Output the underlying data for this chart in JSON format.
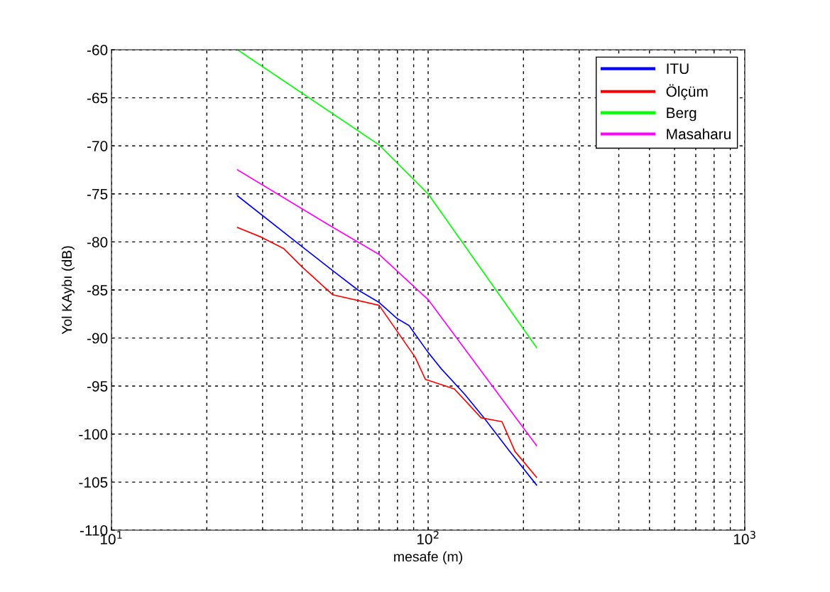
{
  "chart_data": {
    "type": "line",
    "xlabel": "mesafe (m)",
    "ylabel": "Yol KAybı (dB)",
    "log": "x",
    "xlim": [
      10,
      1000
    ],
    "xticks": [
      {
        "value": 10,
        "label": "10$^{1}$"
      },
      {
        "value": 100,
        "label": "10$^{2}$"
      },
      {
        "value": 1000,
        "label": "10$^{3}$"
      }
    ],
    "ylim": [
      -110,
      -60
    ],
    "yticks": [
      -110,
      -105,
      -100,
      -95,
      -90,
      -85,
      -80,
      -75,
      -70,
      -65,
      -60
    ],
    "grid": true,
    "legend": "top right",
    "line_style": "solid",
    "series": [
      {
        "name": "ITU",
        "color": "#0000ff",
        "x": [
          25,
          40,
          50,
          60,
          70,
          80,
          87,
          100,
          110,
          130,
          150,
          180,
          220
        ],
        "values": [
          -75.2,
          -80.5,
          -83,
          -85,
          -86.3,
          -88,
          -88.7,
          -91.5,
          -93.2,
          -95.8,
          -98.3,
          -101.7,
          -105.3
        ]
      },
      {
        "name": "Ölçüm",
        "color": "#ff0000",
        "x": [
          25,
          29.7,
          35,
          40,
          50,
          70,
          91,
          98,
          121,
          147,
          171,
          188,
          220
        ],
        "values": [
          -78.5,
          -79.5,
          -80.7,
          -82.6,
          -85.5,
          -86.6,
          -92,
          -94.3,
          -95.3,
          -98.3,
          -98.7,
          -101.8,
          -104.5
        ]
      },
      {
        "name": "Berg",
        "color": "#00ff00",
        "x": [
          25,
          70,
          100,
          220
        ],
        "values": [
          -60,
          -69.9,
          -75,
          -91
        ]
      },
      {
        "name": "Masaharu",
        "color": "#ff00ff",
        "x": [
          25,
          49,
          70,
          100,
          220
        ],
        "values": [
          -72.5,
          -78.3,
          -81.3,
          -86,
          -101.2
        ]
      }
    ]
  }
}
